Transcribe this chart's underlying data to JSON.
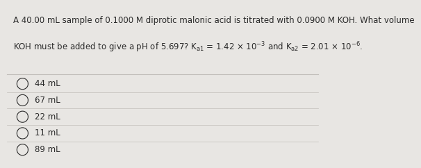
{
  "question_line1": "A 40.00 mL sample of 0.1000 M diprotic malonic acid is titrated with 0.0900 M KOH. What volume",
  "question_line2": "KOH must be added to give a pH of 5.697? $\\mathregular{K_{a1}}$ = 1.42 × 10$\\mathregular{^{-3}}$ and $\\mathregular{K_{a2}}$ = 2.01 × 10$\\mathregular{^{-6}}$.",
  "options": [
    "44 mL",
    "67 mL",
    "22 mL",
    "11 mL",
    "89 mL"
  ],
  "bg_color": "#e8e6e3",
  "text_color": "#2b2b2b",
  "divider_color": "#c0bdb9",
  "font_size_q": 8.5,
  "font_size_opt": 8.5
}
